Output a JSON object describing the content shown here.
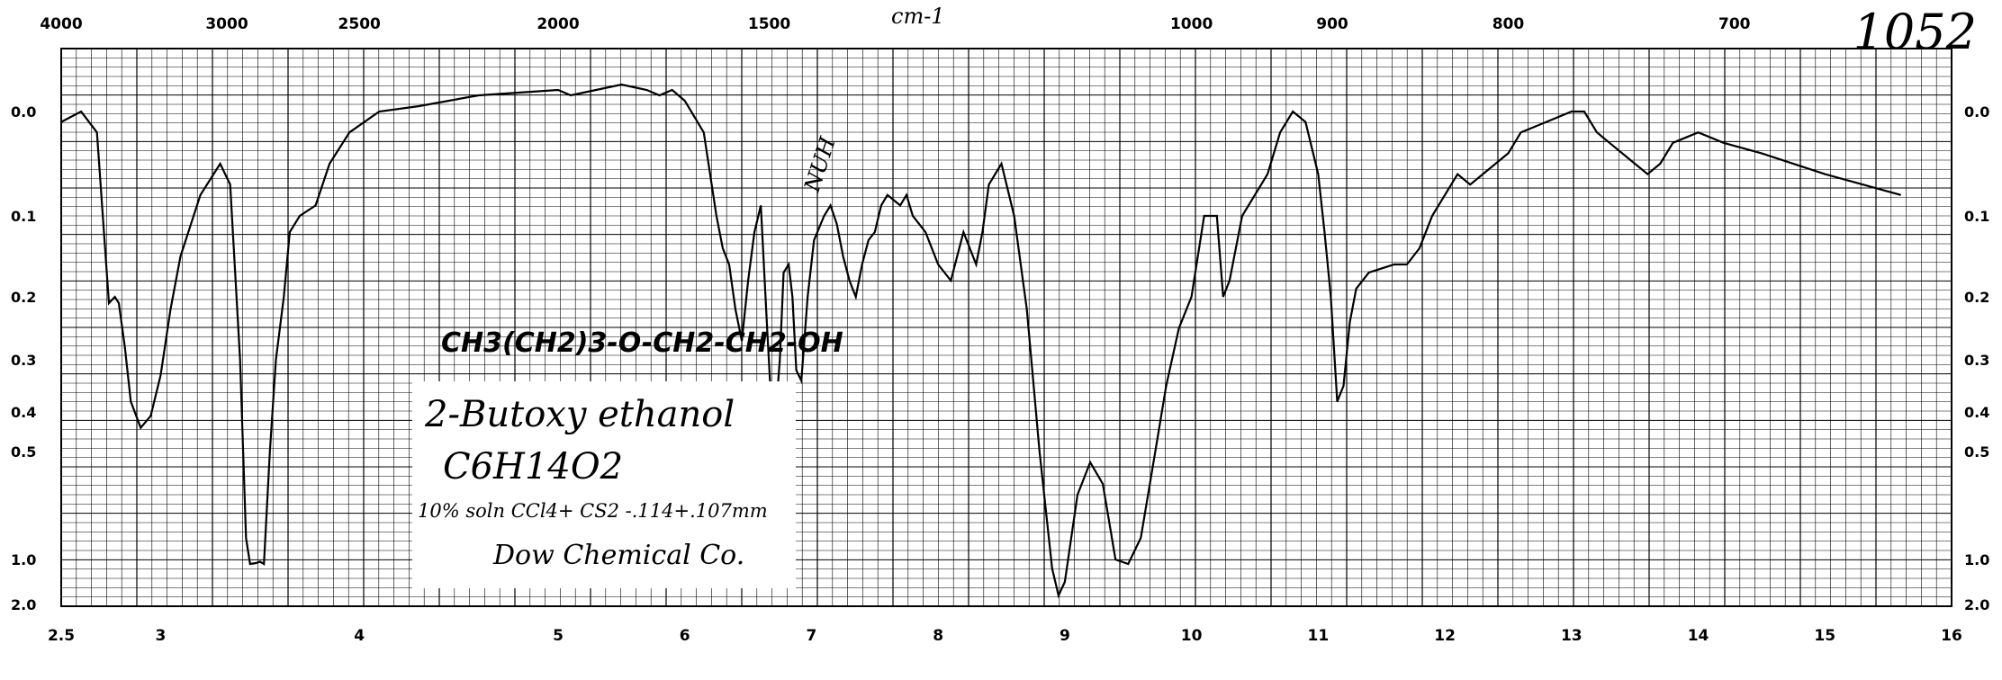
{
  "chart_data": {
    "type": "line",
    "xlabel_top": "cm-1",
    "top_ticks": [
      "4000",
      "3000",
      "2500",
      "2000",
      "1500",
      "1000",
      "900",
      "800",
      "700"
    ],
    "bottom_ticks": [
      "2.5",
      "3",
      "4",
      "5",
      "6",
      "7",
      "8",
      "9",
      "10",
      "11",
      "12",
      "13",
      "14",
      "15",
      "16"
    ],
    "y_ticks": [
      "0.0",
      "0.1",
      "0.2",
      "0.3",
      "0.4",
      "0.5",
      "1.0",
      "2.0"
    ],
    "xlim": [
      2.5,
      16
    ],
    "ylim": [
      0.0,
      2.0
    ],
    "series": [
      {
        "x": [
          2.5,
          2.6,
          2.68,
          2.74,
          2.77,
          2.79,
          2.82,
          2.85,
          2.9,
          2.95,
          3.0,
          3.05,
          3.1,
          3.2,
          3.3,
          3.35,
          3.4,
          3.43,
          3.45,
          3.48,
          3.5,
          3.52,
          3.55,
          3.58,
          3.62,
          3.65,
          3.7,
          3.78,
          3.85,
          3.95,
          4.1,
          4.3,
          4.6,
          5.0,
          5.1,
          5.3,
          5.5,
          5.7,
          5.8,
          5.9,
          6.0,
          6.15,
          6.25,
          6.3,
          6.35,
          6.4,
          6.45,
          6.5,
          6.55,
          6.6,
          6.65,
          6.7,
          6.75,
          6.78,
          6.82,
          6.85,
          6.88,
          6.92,
          6.97,
          7.02,
          7.1,
          7.15,
          7.2,
          7.25,
          7.3,
          7.35,
          7.4,
          7.45,
          7.5,
          7.55,
          7.6,
          7.7,
          7.75,
          7.8,
          7.9,
          8.0,
          8.1,
          8.15,
          8.2,
          8.3,
          8.35,
          8.4,
          8.5,
          8.6,
          8.7,
          8.8,
          8.9,
          8.95,
          9.0,
          9.1,
          9.2,
          9.3,
          9.4,
          9.5,
          9.6,
          9.7,
          9.8,
          9.9,
          10.0,
          10.1,
          10.2,
          10.25,
          10.3,
          10.4,
          10.5,
          10.6,
          10.7,
          10.8,
          10.9,
          11.0,
          11.05,
          11.1,
          11.15,
          11.2,
          11.25,
          11.3,
          11.4,
          11.6,
          11.7,
          11.8,
          11.9,
          12.0,
          12.1,
          12.2,
          12.3,
          12.4,
          12.5,
          12.6,
          12.8,
          13.0,
          13.1,
          13.2,
          13.3,
          13.5,
          13.6,
          13.7,
          13.8,
          14.0,
          14.2,
          14.5,
          15.0,
          15.6
        ],
        "y": [
          0.01,
          0.0,
          0.02,
          0.21,
          0.2,
          0.21,
          0.28,
          0.38,
          0.44,
          0.41,
          0.33,
          0.22,
          0.15,
          0.08,
          0.05,
          0.07,
          0.3,
          0.9,
          1.1,
          1.08,
          1.05,
          1.1,
          0.5,
          0.3,
          0.2,
          0.12,
          0.1,
          0.09,
          0.05,
          0.02,
          0.0,
          -0.01,
          -0.03,
          -0.04,
          -0.03,
          -0.04,
          -0.05,
          -0.04,
          -0.03,
          -0.04,
          -0.02,
          0.02,
          0.1,
          0.14,
          0.16,
          0.22,
          0.27,
          0.18,
          0.12,
          0.09,
          0.25,
          0.48,
          0.3,
          0.17,
          0.16,
          0.2,
          0.32,
          0.34,
          0.2,
          0.13,
          0.1,
          0.09,
          0.11,
          0.15,
          0.18,
          0.2,
          0.16,
          0.13,
          0.12,
          0.09,
          0.08,
          0.09,
          0.08,
          0.1,
          0.12,
          0.16,
          0.18,
          0.15,
          0.12,
          0.16,
          0.12,
          0.07,
          0.05,
          0.1,
          0.22,
          0.5,
          1.2,
          1.8,
          1.5,
          0.7,
          0.55,
          0.65,
          1.0,
          1.1,
          0.9,
          0.55,
          0.35,
          0.25,
          0.2,
          0.1,
          0.1,
          0.2,
          0.18,
          0.1,
          0.08,
          0.06,
          0.02,
          0.0,
          0.01,
          0.06,
          0.12,
          0.2,
          0.38,
          0.35,
          0.24,
          0.19,
          0.17,
          0.16,
          0.16,
          0.14,
          0.1,
          0.08,
          0.06,
          0.07,
          0.06,
          0.05,
          0.04,
          0.02,
          0.01,
          0.0,
          0.0,
          0.02,
          0.03,
          0.05,
          0.06,
          0.05,
          0.03,
          0.02,
          0.03,
          0.04,
          0.06,
          0.08
        ]
      }
    ]
  },
  "catalog_number": "1052",
  "annotations": {
    "formula_struct": "CH3(CH2)3-O-CH2-CH2-OH",
    "nuh": "NUH"
  },
  "label_box": {
    "name": "2-Butoxy ethanol",
    "formula": "C6H14O2",
    "solution": "10% soln CCl4+ CS2 -.114+.107mm",
    "source": "Dow Chemical Co."
  }
}
